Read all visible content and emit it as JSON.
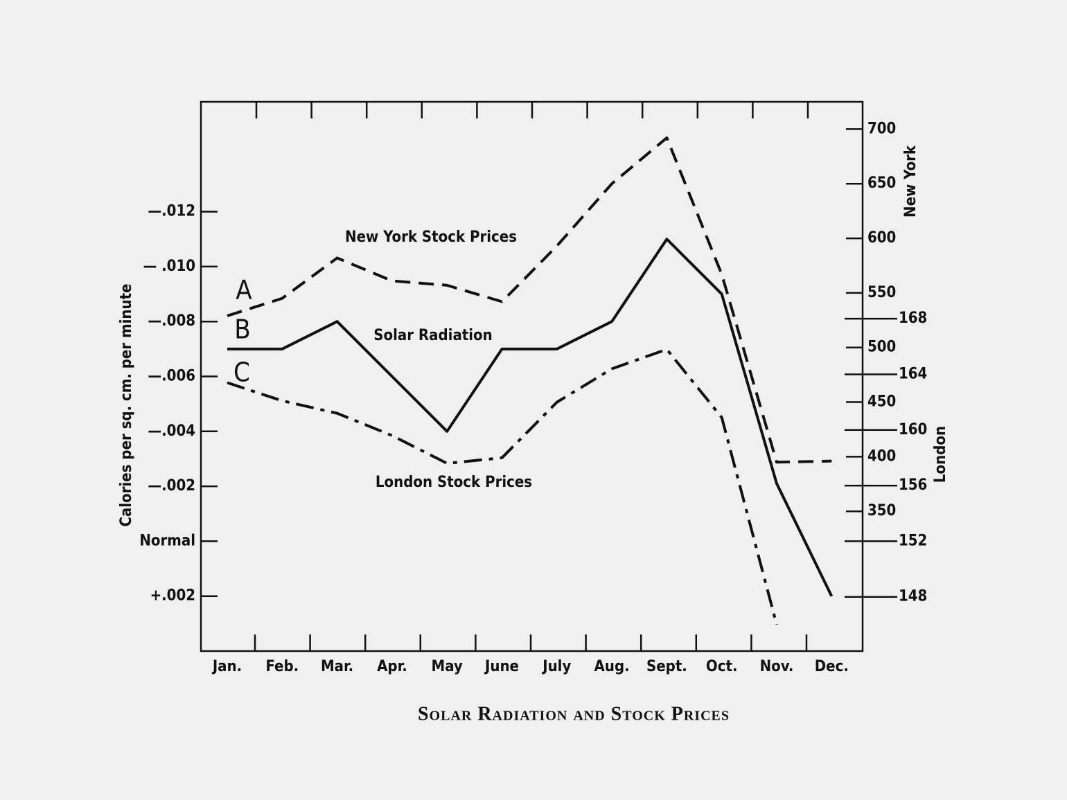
{
  "chart_data": {
    "type": "line",
    "title": "Solar Radiation and Stock Prices",
    "ylabel": "Calories per sq. cm. per minute",
    "y2label": "New York",
    "y3label": "London",
    "categories": [
      "Jan.",
      "Feb.",
      "Mar.",
      "Apr.",
      "May",
      "June",
      "July",
      "Aug.",
      "Sept.",
      "Oct.",
      "Nov.",
      "Dec."
    ],
    "ylim": [
      0.004,
      -0.016
    ],
    "yticks": [
      {
        "value": -0.012,
        "label": "—.012"
      },
      {
        "value": -0.01,
        "label": "— .010"
      },
      {
        "value": -0.008,
        "label": "—.008"
      },
      {
        "value": -0.006,
        "label": "—.006"
      },
      {
        "value": -0.004,
        "label": "—.004"
      },
      {
        "value": -0.002,
        "label": "—.002"
      },
      {
        "value": 0,
        "label": "Normal"
      },
      {
        "value": 0.002,
        "label": "+.002"
      }
    ],
    "y2lim": [
      222,
      725
    ],
    "y2ticks": [
      700,
      650,
      600,
      550,
      500,
      450,
      400,
      350
    ],
    "y3lim": [
      144.1,
      183.6
    ],
    "y3ticks": [
      168,
      164,
      160,
      156,
      152,
      148
    ],
    "series": [
      {
        "name": "New York Stock Prices",
        "color": "#111111",
        "linestyle": "dashed",
        "axis": "y2",
        "values": [
          529,
          545,
          582,
          561,
          557,
          542,
          593,
          650,
          692,
          567,
          395,
          396
        ]
      },
      {
        "name": "Solar Radiation",
        "color": "#111111",
        "linestyle": "solid",
        "values": [
          -0.007,
          -0.007,
          -0.008,
          -0.006,
          -0.004,
          -0.007,
          -0.007,
          -0.008,
          -0.011,
          -0.009,
          -0.0021,
          0.002
        ]
      },
      {
        "name": "London Stock Prices",
        "color": "#111111",
        "linestyle": "dashdot",
        "axis": "y3",
        "values": [
          163.4,
          162.1,
          161.2,
          159.6,
          157.6,
          158.0,
          162.0,
          164.4,
          165.8,
          160.9,
          146.0,
          null
        ]
      }
    ],
    "annotations": [
      "A",
      "B",
      "C"
    ]
  }
}
